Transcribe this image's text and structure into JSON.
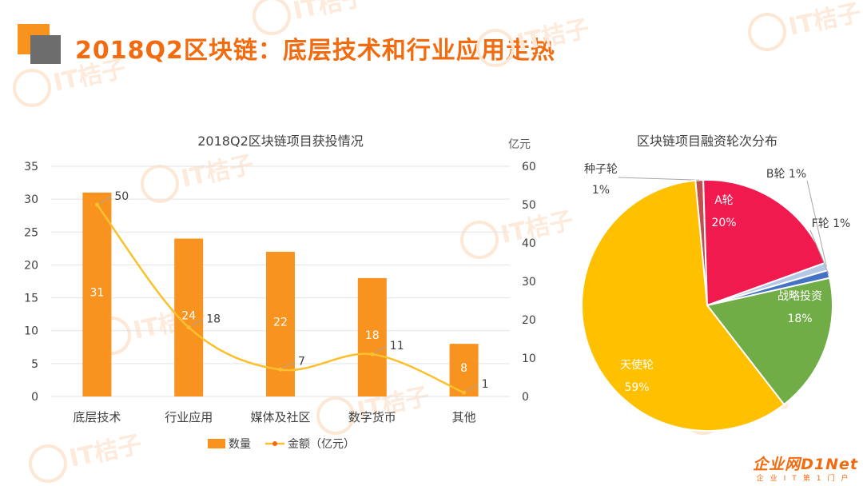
{
  "header": {
    "title": "2018Q2区块链：底层技术和行业应用走热"
  },
  "brand": {
    "name": "企业网D1Net",
    "tagline": "企业IT第1门户"
  },
  "watermark": "IT桔子",
  "colors": {
    "accent": "#f26b0f",
    "bar": "#f7931e",
    "line": "#fbc02d",
    "gray": "#6d6d6d"
  },
  "chart_data": [
    {
      "type": "bar",
      "title": "2018Q2区块链项目获投情况",
      "categories": [
        "底层技术",
        "行业应用",
        "媒体及社区",
        "数字货币",
        "其他"
      ],
      "y_ticks": [
        "0",
        "5",
        "10",
        "15",
        "20",
        "25",
        "30",
        "35"
      ],
      "y2_ticks": [
        "0",
        "10",
        "20",
        "30",
        "40",
        "50",
        "60"
      ],
      "y2label": "亿元",
      "ylim": [
        0,
        35
      ],
      "y2lim": [
        0,
        60
      ],
      "legend_position": "bottom",
      "series": [
        {
          "name": "数量",
          "type": "bar",
          "axis": "left",
          "values": [
            31,
            24,
            22,
            18,
            8
          ],
          "labels": [
            "31",
            "24",
            "22",
            "18",
            "8"
          ],
          "color": "#f7931e"
        },
        {
          "name": "金额（亿元）",
          "type": "line",
          "axis": "right",
          "values": [
            50,
            18,
            7,
            11,
            1
          ],
          "labels": [
            "50",
            "18",
            "7",
            "11",
            "1"
          ],
          "color": "#fbc02d"
        }
      ]
    },
    {
      "type": "pie",
      "title": "区块链项目融资轮次分布",
      "slices": [
        {
          "name": "种子轮",
          "value": 1,
          "label": "1%",
          "color": "#c0504d"
        },
        {
          "name": "A轮",
          "value": 20,
          "label": "20%",
          "color": "#f01a4e"
        },
        {
          "name": "B轮",
          "value": 1,
          "label": "1%",
          "color": "#b4c7e7"
        },
        {
          "name": "F轮",
          "value": 1,
          "label": "1%",
          "color": "#4472c4"
        },
        {
          "name": "战略投资",
          "value": 18,
          "label": "18%",
          "color": "#70ad47"
        },
        {
          "name": "天使轮",
          "value": 59,
          "label": "59%",
          "color": "#ffc000"
        }
      ]
    }
  ]
}
